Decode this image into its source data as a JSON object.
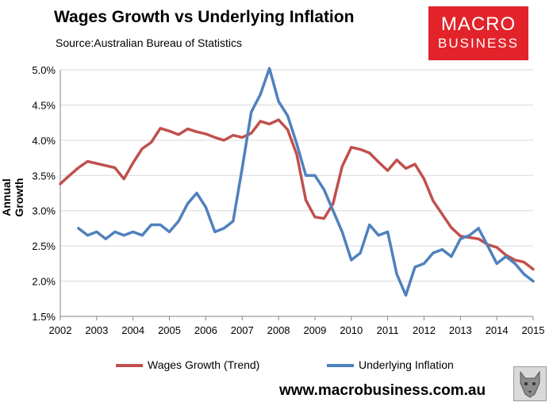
{
  "header": {
    "title": "Wages Growth vs Underlying Inflation",
    "source": "Source:Australian Bureau of Statistics"
  },
  "logo": {
    "line1": "MACRO",
    "line2": "BUSINESS"
  },
  "footer": {
    "url": "www.macrobusiness.com.au"
  },
  "colors": {
    "wages": "#c0504d",
    "inflation": "#4f81bd",
    "grid": "#d9d9d9",
    "logo": "#e2232a"
  },
  "chart_data": {
    "type": "line",
    "title": "Wages Growth vs Underlying Inflation",
    "xlabel": "",
    "ylabel": "Annual Growth",
    "xlim": [
      2002,
      2015
    ],
    "ylim": [
      1.5,
      5.0
    ],
    "x_ticks": [
      "2002",
      "2003",
      "2004",
      "2005",
      "2006",
      "2007",
      "2008",
      "2009",
      "2010",
      "2011",
      "2012",
      "2013",
      "2014",
      "2015"
    ],
    "y_ticks": [
      "1.5%",
      "2.0%",
      "2.5%",
      "3.0%",
      "3.5%",
      "4.0%",
      "4.5%",
      "5.0%"
    ],
    "grid": "horizontal",
    "legend_position": "bottom",
    "series": [
      {
        "name": "Wages Growth (Trend)",
        "x": [
          2002.0,
          2002.25,
          2002.5,
          2002.75,
          2003.0,
          2003.25,
          2003.5,
          2003.75,
          2004.0,
          2004.25,
          2004.5,
          2004.75,
          2005.0,
          2005.25,
          2005.5,
          2005.75,
          2006.0,
          2006.25,
          2006.5,
          2006.75,
          2007.0,
          2007.25,
          2007.5,
          2007.75,
          2008.0,
          2008.25,
          2008.5,
          2008.75,
          2009.0,
          2009.25,
          2009.5,
          2009.75,
          2010.0,
          2010.25,
          2010.5,
          2010.75,
          2011.0,
          2011.25,
          2011.5,
          2011.75,
          2012.0,
          2012.25,
          2012.5,
          2012.75,
          2013.0,
          2013.25,
          2013.5,
          2013.75,
          2014.0,
          2014.25,
          2014.5,
          2014.75,
          2015.0
        ],
        "values": [
          3.38,
          3.5,
          3.61,
          3.7,
          3.67,
          3.64,
          3.61,
          3.45,
          3.68,
          3.88,
          3.97,
          4.17,
          4.13,
          4.08,
          4.16,
          4.12,
          4.09,
          4.04,
          4.0,
          4.07,
          4.04,
          4.1,
          4.27,
          4.23,
          4.29,
          4.15,
          3.8,
          3.15,
          2.91,
          2.89,
          3.1,
          3.63,
          3.9,
          3.87,
          3.82,
          3.69,
          3.57,
          3.72,
          3.6,
          3.66,
          3.45,
          3.14,
          2.95,
          2.76,
          2.64,
          2.62,
          2.6,
          2.52,
          2.48,
          2.37,
          2.3,
          2.27,
          2.17
        ]
      },
      {
        "name": "Underlying Inflation",
        "x": [
          2002.5,
          2002.75,
          2003.0,
          2003.25,
          2003.5,
          2003.75,
          2004.0,
          2004.25,
          2004.5,
          2004.75,
          2005.0,
          2005.25,
          2005.5,
          2005.75,
          2006.0,
          2006.25,
          2006.5,
          2006.75,
          2007.0,
          2007.25,
          2007.5,
          2007.75,
          2008.0,
          2008.25,
          2008.5,
          2008.75,
          2009.0,
          2009.25,
          2009.5,
          2009.75,
          2010.0,
          2010.25,
          2010.5,
          2010.75,
          2011.0,
          2011.25,
          2011.5,
          2011.75,
          2012.0,
          2012.25,
          2012.5,
          2012.75,
          2013.0,
          2013.25,
          2013.5,
          2013.75,
          2014.0,
          2014.25,
          2014.5,
          2014.75,
          2015.0
        ],
        "values": [
          2.75,
          2.65,
          2.7,
          2.6,
          2.7,
          2.65,
          2.7,
          2.65,
          2.8,
          2.8,
          2.7,
          2.85,
          3.1,
          3.25,
          3.05,
          2.7,
          2.75,
          2.85,
          3.6,
          4.4,
          4.65,
          5.02,
          4.55,
          4.35,
          3.95,
          3.5,
          3.5,
          3.3,
          3.0,
          2.7,
          2.3,
          2.4,
          2.8,
          2.65,
          2.7,
          2.1,
          1.8,
          2.2,
          2.25,
          2.4,
          2.45,
          2.35,
          2.6,
          2.65,
          2.75,
          2.5,
          2.25,
          2.35,
          2.25,
          2.1,
          2.0
        ]
      }
    ]
  }
}
